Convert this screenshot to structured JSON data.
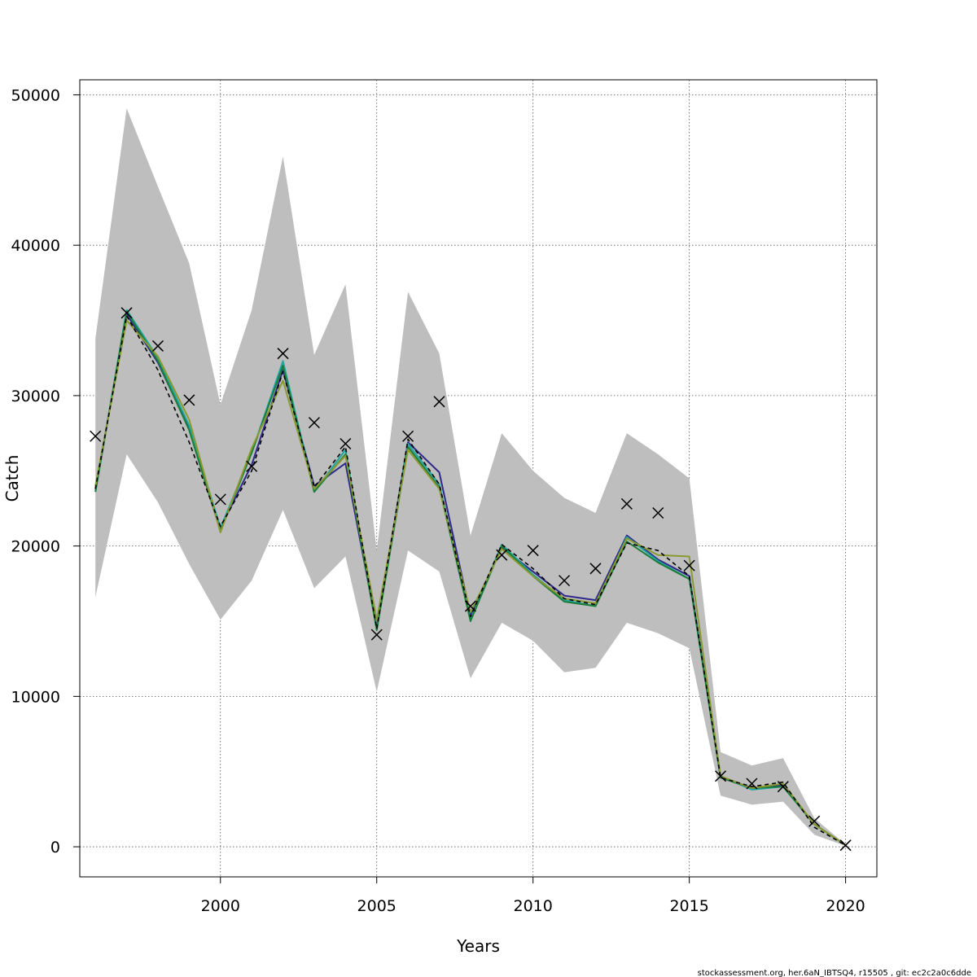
{
  "chart_data": {
    "type": "line",
    "title": "",
    "xlabel": "Years",
    "ylabel": "Catch",
    "xlim": [
      1995.5,
      2021.0
    ],
    "ylim": [
      -2000,
      51000
    ],
    "x_ticks": [
      2000,
      2005,
      2010,
      2015,
      2020
    ],
    "x_tick_labels": [
      "2000",
      "2005",
      "2010",
      "2015",
      "2020"
    ],
    "y_ticks": [
      0,
      10000,
      20000,
      30000,
      40000,
      50000
    ],
    "y_tick_labels": [
      "0",
      "10000",
      "20000",
      "30000",
      "40000",
      "50000"
    ],
    "grid": true,
    "years": [
      1996,
      1997,
      1998,
      1999,
      2000,
      2001,
      2002,
      2003,
      2004,
      2005,
      2006,
      2007,
      2008,
      2009,
      2010,
      2011,
      2012,
      2013,
      2014,
      2015,
      2016,
      2017,
      2018,
      2019,
      2020
    ],
    "confidence_band": {
      "upper": [
        33800,
        49100,
        43900,
        38800,
        29400,
        35700,
        45900,
        32700,
        37400,
        19700,
        36900,
        32800,
        20700,
        27500,
        25000,
        23200,
        22200,
        27500,
        26100,
        24500,
        6300,
        5400,
        5900,
        1900,
        150
      ],
      "lower": [
        16600,
        26100,
        22900,
        18800,
        15100,
        17700,
        22400,
        17200,
        19300,
        10300,
        19700,
        18300,
        11200,
        14900,
        13700,
        11600,
        11900,
        14900,
        14200,
        13200,
        3400,
        2800,
        3000,
        800,
        50
      ],
      "color": "#bebebe"
    },
    "observed": [
      27300,
      35500,
      33300,
      29700,
      23100,
      25300,
      32800,
      28200,
      26800,
      14100,
      27300,
      29600,
      16000,
      19400,
      19700,
      17700,
      18500,
      22800,
      22200,
      18700,
      4700,
      4200,
      4000,
      1700,
      100
    ],
    "series": [
      {
        "color": "#000000",
        "dashed": true,
        "values": [
          23800,
          35300,
          31700,
          26900,
          21300,
          25000,
          31600,
          23900,
          26600,
          14500,
          27100,
          24100,
          15300,
          20100,
          18500,
          16500,
          16100,
          20200,
          19700,
          18000,
          4600,
          4000,
          4300,
          1300,
          100
        ]
      },
      {
        "color": "#2d2a8a",
        "dashed": false,
        "values": [
          23800,
          35400,
          32200,
          27800,
          21200,
          25400,
          31700,
          24000,
          25500,
          14600,
          26900,
          24900,
          15400,
          19900,
          18300,
          16700,
          16400,
          20700,
          19100,
          18000,
          4600,
          3900,
          4100,
          1500,
          100
        ]
      },
      {
        "color": "#1fa6a0",
        "dashed": false,
        "values": [
          23600,
          35700,
          32500,
          28000,
          21200,
          26200,
          32300,
          23600,
          26400,
          14500,
          26800,
          24100,
          15100,
          20100,
          18100,
          16400,
          16000,
          20600,
          19000,
          17800,
          4700,
          3800,
          4000,
          1500,
          100
        ]
      },
      {
        "color": "#1c7d3a",
        "dashed": false,
        "values": [
          23600,
          35600,
          32300,
          27700,
          21000,
          26200,
          32000,
          23600,
          26100,
          14400,
          26600,
          23900,
          15000,
          20000,
          18000,
          16300,
          16000,
          20300,
          18900,
          17800,
          4600,
          3900,
          4000,
          1500,
          100
        ]
      },
      {
        "color": "#8a9a30",
        "dashed": false,
        "values": [
          24000,
          35000,
          32600,
          28400,
          20900,
          26500,
          31000,
          23800,
          26000,
          15100,
          26400,
          23800,
          15600,
          19800,
          18000,
          16500,
          16200,
          20500,
          19400,
          19300,
          4700,
          3900,
          4200,
          1500,
          100
        ]
      }
    ]
  },
  "footer": {
    "note": "stockassessment.org, her.6aN_IBTSQ4, r15505 , git: ec2c2a0c6dde"
  }
}
